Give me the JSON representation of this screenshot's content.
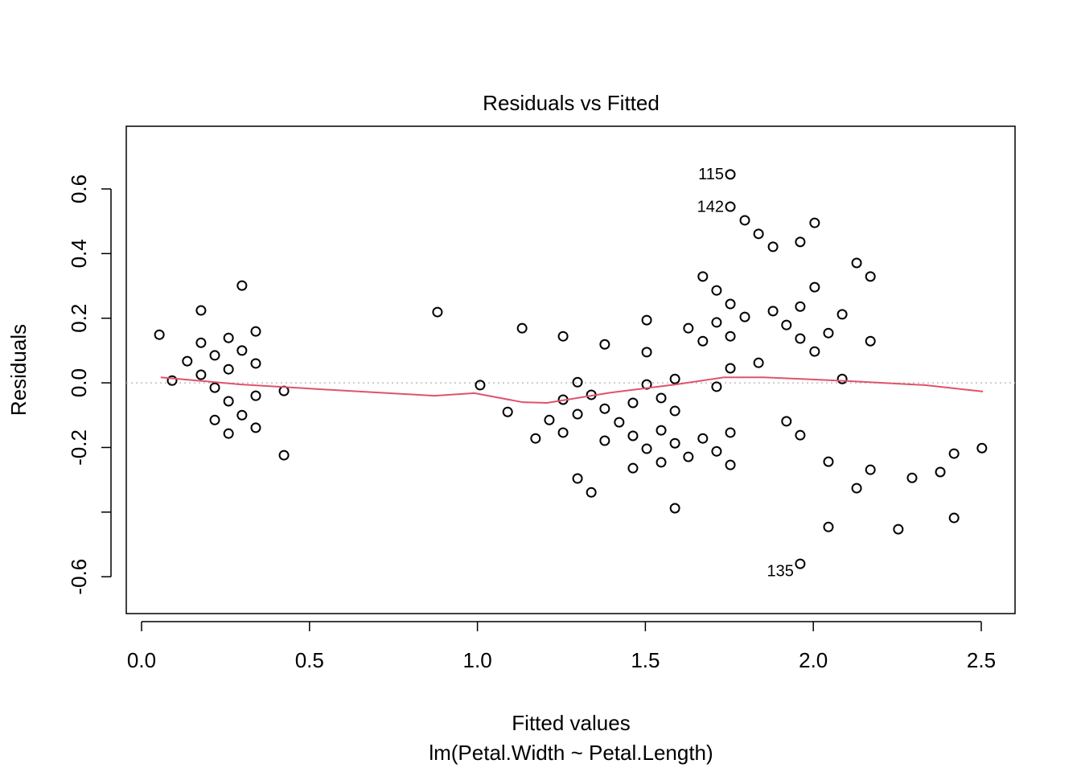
{
  "chart_data": {
    "type": "scatter",
    "title": "Residuals vs Fitted",
    "xlabel": "Fitted values",
    "subtitle": "lm(Petal.Width ~ Petal.Length)",
    "ylabel": "Residuals",
    "xlim": [
      -0.0455,
      2.6006
    ],
    "ylim": [
      -0.714,
      0.794
    ],
    "xticks": [
      {
        "value": 0,
        "label": "0.0"
      },
      0.5,
      {
        "value": 1,
        "label": "1.0"
      },
      1.5,
      {
        "value": 2,
        "label": "2.0"
      },
      2.5
    ],
    "yticks": [
      {
        "value": -0.6,
        "label": "-0.6"
      },
      {
        "value": -0.4,
        "label": null
      },
      {
        "value": -0.2,
        "label": "-0.2"
      },
      {
        "value": 0,
        "label": "0.0"
      },
      {
        "value": 0.2,
        "label": "0.2"
      },
      {
        "value": 0.4,
        "label": "0.4"
      },
      {
        "value": 0.6,
        "label": "0.6"
      }
    ],
    "point_color": "#000000",
    "x": [
      0.053,
      0.091,
      0.136,
      0.177,
      0.177,
      0.177,
      0.218,
      0.218,
      0.218,
      0.259,
      0.259,
      0.259,
      0.259,
      0.299,
      0.299,
      0.299,
      0.34,
      0.34,
      0.34,
      0.34,
      0.424,
      0.424,
      0.881,
      1.008,
      1.09,
      1.133,
      1.173,
      1.214,
      1.255,
      1.255,
      1.255,
      1.298,
      1.298,
      1.298,
      1.339,
      1.339,
      1.379,
      1.379,
      1.379,
      1.422,
      1.463,
      1.463,
      1.463,
      1.504,
      1.504,
      1.504,
      1.504,
      1.547,
      1.547,
      1.547,
      1.588,
      1.588,
      1.588,
      1.588,
      1.628,
      1.628,
      1.671,
      1.671,
      1.671,
      1.712,
      1.712,
      1.712,
      1.712,
      1.753,
      1.753,
      1.753,
      1.753,
      1.753,
      1.753,
      1.753,
      1.796,
      1.796,
      1.837,
      1.837,
      1.88,
      1.88,
      1.92,
      1.92,
      1.961,
      1.961,
      1.961,
      1.961,
      1.961,
      2.004,
      2.004,
      2.004,
      2.045,
      2.045,
      2.045,
      2.086,
      2.086,
      2.129,
      2.129,
      2.17,
      2.17,
      2.17,
      2.253,
      2.294,
      2.378,
      2.419,
      2.419,
      2.502
    ],
    "y": [
      0.149,
      0.007,
      0.067,
      0.224,
      0.124,
      0.025,
      0.085,
      -0.015,
      -0.115,
      0.139,
      0.042,
      -0.057,
      -0.157,
      0.301,
      0.1,
      -0.1,
      0.159,
      0.06,
      -0.04,
      -0.139,
      -0.025,
      -0.224,
      0.219,
      -0.007,
      -0.09,
      0.169,
      -0.172,
      -0.115,
      0.144,
      -0.052,
      -0.154,
      0.002,
      -0.097,
      -0.296,
      -0.037,
      -0.339,
      0.119,
      -0.08,
      -0.179,
      -0.122,
      -0.062,
      -0.164,
      -0.264,
      0.194,
      0.095,
      -0.005,
      -0.204,
      -0.047,
      -0.147,
      -0.246,
      0.012,
      -0.087,
      -0.187,
      -0.388,
      0.169,
      -0.229,
      0.329,
      0.129,
      -0.172,
      0.286,
      0.187,
      -0.012,
      -0.212,
      0.645,
      0.545,
      0.244,
      0.144,
      0.045,
      -0.154,
      -0.254,
      0.503,
      0.204,
      0.461,
      0.062,
      0.421,
      0.222,
      0.179,
      -0.119,
      0.436,
      0.236,
      0.137,
      -0.162,
      -0.56,
      0.495,
      0.296,
      0.097,
      0.154,
      -0.244,
      -0.446,
      0.212,
      0.012,
      0.371,
      -0.326,
      0.329,
      0.129,
      -0.269,
      -0.453,
      -0.294,
      -0.276,
      -0.219,
      -0.418,
      -0.202
    ],
    "point_labels": [
      null,
      null,
      null,
      null,
      null,
      null,
      null,
      null,
      null,
      null,
      null,
      null,
      null,
      null,
      null,
      null,
      null,
      null,
      null,
      null,
      null,
      null,
      null,
      null,
      null,
      null,
      null,
      null,
      null,
      null,
      null,
      null,
      null,
      null,
      null,
      null,
      null,
      null,
      null,
      null,
      null,
      null,
      null,
      null,
      null,
      null,
      null,
      null,
      null,
      null,
      null,
      null,
      null,
      null,
      null,
      null,
      null,
      null,
      null,
      null,
      null,
      null,
      null,
      "115",
      "142",
      null,
      null,
      null,
      null,
      null,
      null,
      null,
      null,
      null,
      null,
      null,
      null,
      null,
      null,
      null,
      null,
      null,
      "135",
      null,
      null,
      null,
      null,
      null,
      null,
      null,
      null,
      null,
      null,
      null,
      null,
      null,
      null,
      null,
      null,
      null,
      null,
      null
    ],
    "smooth": {
      "color": "#DF536B",
      "x": [
        0.057,
        0.297,
        0.536,
        0.872,
        0.991,
        1.135,
        1.207,
        1.398,
        1.59,
        1.734,
        1.853,
        2.117,
        2.332,
        2.505
      ],
      "y": [
        0.017,
        -0.005,
        -0.02,
        -0.04,
        -0.032,
        -0.06,
        -0.062,
        -0.03,
        -0.005,
        0.017,
        0.017,
        0.005,
        -0.007,
        -0.027
      ]
    },
    "reference_line": {
      "value": 0,
      "color": "#bebebe"
    }
  }
}
